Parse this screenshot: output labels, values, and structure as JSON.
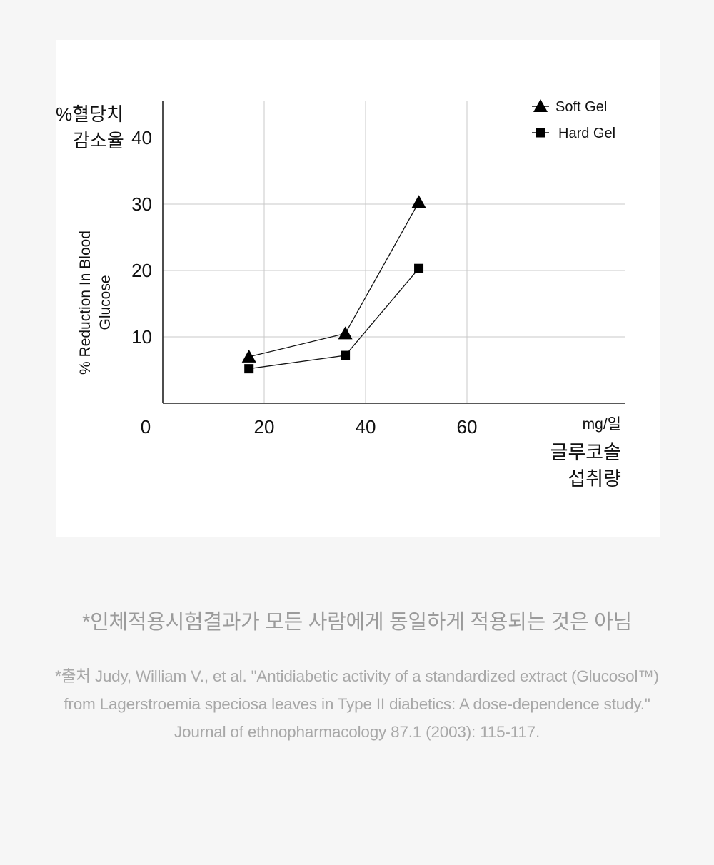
{
  "chart_data": {
    "type": "line",
    "y_label_ko": [
      "%혈당치",
      "감소율"
    ],
    "y_label_en": [
      "% Reduction In Blood",
      "Glucose"
    ],
    "x_unit": "mg/일",
    "x_label_ko": [
      "글루코솔",
      "섭취량"
    ],
    "x_ticks": [
      "0",
      "20",
      "40",
      "60"
    ],
    "y_ticks": [
      "10",
      "20",
      "30",
      "40"
    ],
    "xlim": [
      0,
      90
    ],
    "ylim": [
      0,
      45
    ],
    "grid": true,
    "legend_position": "top-right",
    "series": [
      {
        "name": "Soft Gel",
        "marker": "triangle",
        "points": [
          [
            17,
            7
          ],
          [
            36,
            10.5
          ],
          [
            50.5,
            30.3
          ]
        ]
      },
      {
        "name": "Hard Gel",
        "marker": "square",
        "points": [
          [
            17,
            5.2
          ],
          [
            36,
            7.2
          ],
          [
            50.5,
            20.3
          ]
        ]
      }
    ]
  },
  "notes": {
    "disclaimer": "*인체적용시험결과가 모든 사람에게 동일하게 적용되는 것은 아님",
    "source": "*출처 Judy, William V., et al. \"Antidiabetic activity of a standardized extract (Glucosol™) from Lagerstroemia speciosa leaves in Type II diabetics: A dose-dependence study.\" Journal of ethnopharmacology 87.1 (2003): 115-117."
  }
}
